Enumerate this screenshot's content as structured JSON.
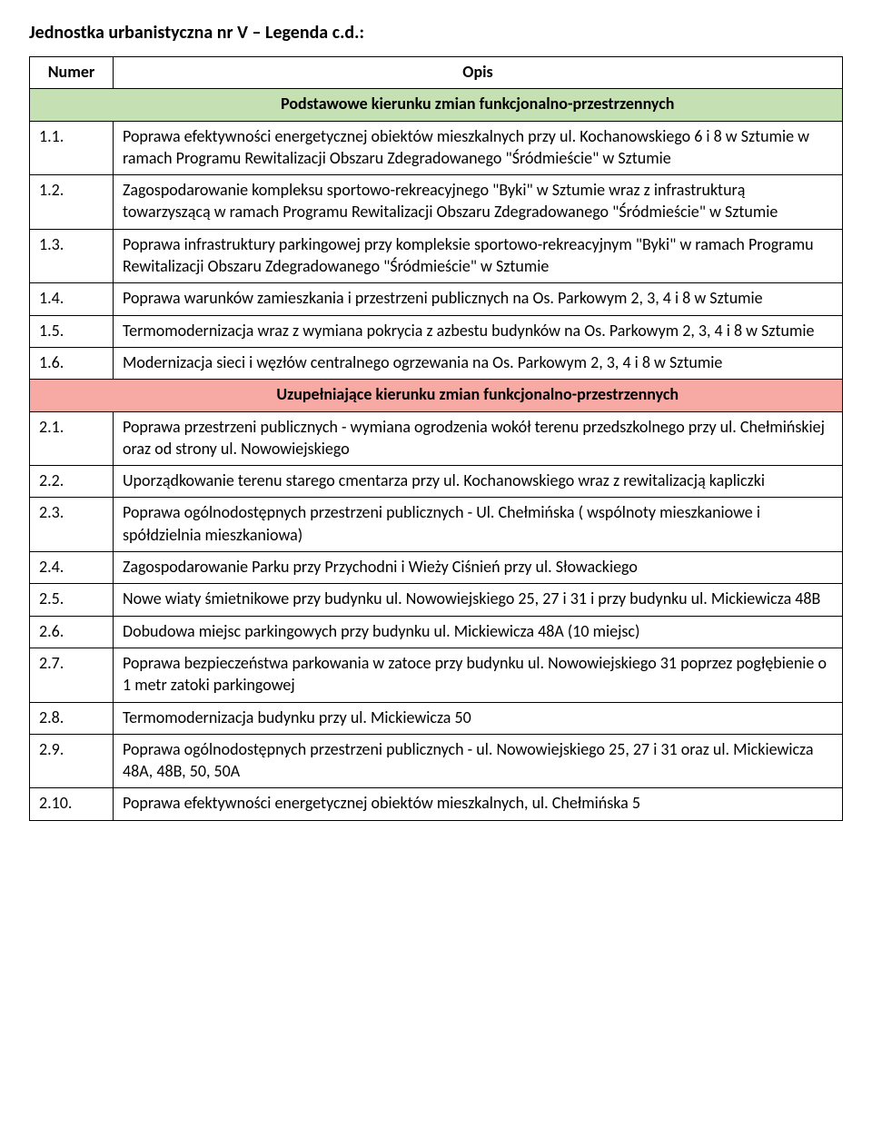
{
  "title": "Jednostka urbanistyczna nr V – Legenda c.d.:",
  "headers": {
    "num": "Numer",
    "desc": "Opis"
  },
  "sections": [
    {
      "label": "Podstawowe kierunku zmian funkcjonalno-przestrzennych",
      "bg": "#c5e0b3",
      "rows": [
        {
          "num": "1.1.",
          "desc": "Poprawa efektywności energetycznej obiektów mieszkalnych przy ul. Kochanowskiego 6 i 8 w Sztumie w ramach Programu Rewitalizacji Obszaru Zdegradowanego \"Śródmieście\" w Sztumie"
        },
        {
          "num": "1.2.",
          "desc": "Zagospodarowanie kompleksu sportowo-rekreacyjnego \"Byki\" w Sztumie wraz z infrastrukturą towarzyszącą w ramach Programu Rewitalizacji Obszaru Zdegradowanego \"Śródmieście\" w Sztumie"
        },
        {
          "num": "1.3.",
          "desc": "Poprawa infrastruktury parkingowej przy kompleksie sportowo-rekreacyjnym \"Byki\" w ramach Programu Rewitalizacji Obszaru Zdegradowanego \"Śródmieście\" w Sztumie"
        },
        {
          "num": "1.4.",
          "desc": "Poprawa warunków zamieszkania i przestrzeni publicznych na Os. Parkowym 2, 3, 4 i 8 w Sztumie"
        },
        {
          "num": "1.5.",
          "desc": "Termomodernizacja wraz z wymiana pokrycia z azbestu budynków na Os. Parkowym 2, 3, 4 i 8 w Sztumie"
        },
        {
          "num": "1.6.",
          "desc": "Modernizacja sieci i węzłów centralnego ogrzewania na Os. Parkowym 2, 3, 4 i 8 w Sztumie"
        }
      ]
    },
    {
      "label": "Uzupełniające kierunku zmian funkcjonalno-przestrzennych",
      "bg": "#f7a9a3",
      "rows": [
        {
          "num": "2.1.",
          "desc": "Poprawa przestrzeni publicznych - wymiana ogrodzenia wokół terenu przedszkolnego przy ul. Chełmińskiej oraz od strony ul. Nowowiejskiego"
        },
        {
          "num": "2.2.",
          "desc": "Uporządkowanie terenu starego cmentarza przy ul. Kochanowskiego wraz z rewitalizacją kapliczki"
        },
        {
          "num": "2.3.",
          "desc": "Poprawa ogólnodostępnych przestrzeni publicznych - Ul. Chełmińska ( wspólnoty mieszkaniowe i spółdzielnia mieszkaniowa)"
        },
        {
          "num": "2.4.",
          "desc": "Zagospodarowanie Parku przy Przychodni i Wieży Ciśnień przy ul. Słowackiego"
        },
        {
          "num": "2.5.",
          "desc": "Nowe wiaty śmietnikowe przy budynku ul. Nowowiejskiego 25, 27 i 31 i przy budynku ul. Mickiewicza 48B"
        },
        {
          "num": "2.6.",
          "desc": "Dobudowa miejsc parkingowych przy budynku ul. Mickiewicza 48A (10 miejsc)"
        },
        {
          "num": "2.7.",
          "desc": "Poprawa bezpieczeństwa parkowania w zatoce przy budynku ul. Nowowiejskiego 31 poprzez pogłębienie o 1 metr zatoki parkingowej"
        },
        {
          "num": "2.8.",
          "desc": "Termomodernizacja budynku przy ul. Mickiewicza 50"
        },
        {
          "num": "2.9.",
          "desc": "Poprawa ogólnodostępnych przestrzeni publicznych  - ul. Nowowiejskiego 25, 27 i 31 oraz ul. Mickiewicza 48A, 48B, 50, 50A"
        },
        {
          "num": "2.10.",
          "desc": "Poprawa efektywności energetycznej obiektów mieszkalnych, ul. Chełmińska 5"
        }
      ]
    }
  ],
  "styling": {
    "page_bg": "#ffffff",
    "text_color": "#000000",
    "border_color": "#000000",
    "title_fontsize": 20,
    "cell_fontsize": 18,
    "font_family": "Calibri"
  }
}
